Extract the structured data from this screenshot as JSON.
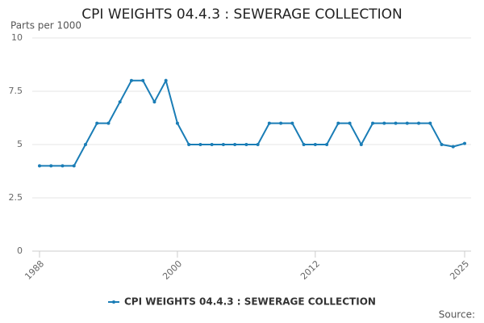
{
  "chart_data": {
    "type": "line",
    "title": "CPI WEIGHTS 04.4.3 : SEWERAGE COLLECTION",
    "y_label": "Parts per 1000",
    "source": "Source:",
    "x": [
      1988,
      1989,
      1990,
      1991,
      1992,
      1993,
      1994,
      1995,
      1996,
      1997,
      1998,
      1999,
      2000,
      2001,
      2002,
      2003,
      2004,
      2005,
      2006,
      2007,
      2008,
      2009,
      2010,
      2011,
      2012,
      2013,
      2014,
      2015,
      2016,
      2017,
      2018,
      2019,
      2020,
      2021,
      2022,
      2023,
      2024,
      2025
    ],
    "series": [
      {
        "name": "CPI WEIGHTS 04.4.3 : SEWERAGE COLLECTION",
        "color": "#1a7db6",
        "values": [
          4,
          4,
          4,
          4,
          5,
          6,
          6,
          7,
          8,
          8,
          7,
          8,
          6,
          5,
          5,
          5,
          5,
          5,
          5,
          5,
          6,
          6,
          6,
          5,
          5,
          5,
          6,
          6,
          5,
          6,
          6,
          6,
          6,
          6,
          6,
          5,
          4.9,
          5.05
        ]
      }
    ],
    "xlim": [
      1988,
      2025
    ],
    "xticks": [
      1988,
      2000,
      2012,
      2025
    ],
    "ylim": [
      0,
      10
    ],
    "yticks": [
      0,
      2.5,
      5,
      7.5,
      10
    ],
    "grid": true
  }
}
